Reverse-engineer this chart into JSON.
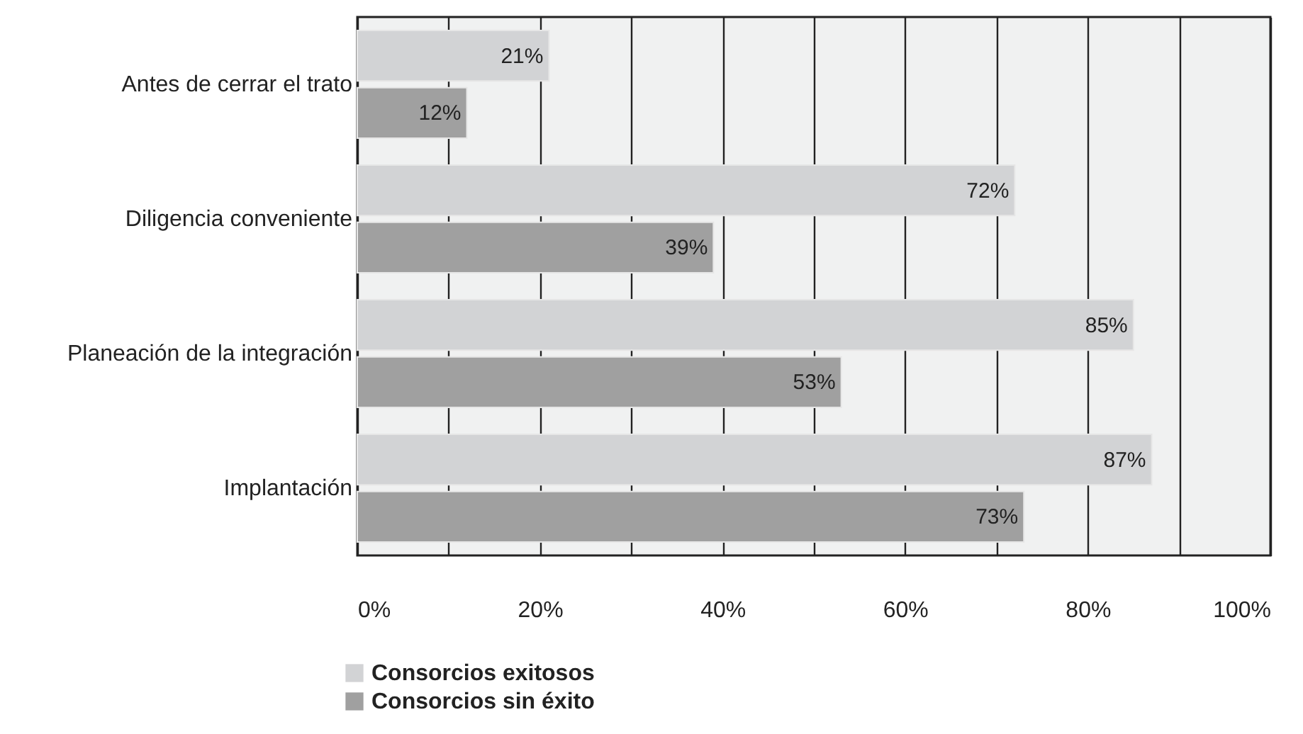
{
  "chart_data": {
    "type": "bar",
    "orientation": "horizontal",
    "categories": [
      "Antes de cerrar el trato",
      "Diligencia conveniente",
      "Planeación de la integración",
      "Implantación"
    ],
    "series": [
      {
        "name": "Consorcios exitosos",
        "color": "#d2d3d5",
        "values": [
          21,
          72,
          85,
          87
        ],
        "value_labels": [
          "21%",
          "72%",
          "85%",
          "87%"
        ]
      },
      {
        "name": "Consorcios sin éxito",
        "color": "#a0a0a0",
        "values": [
          12,
          39,
          53,
          73
        ],
        "value_labels": [
          "12%",
          "39%",
          "53%",
          "73%"
        ]
      }
    ],
    "xlim": [
      0,
      100
    ],
    "xticks": [
      {
        "value": 0,
        "label": "0%"
      },
      {
        "value": 10,
        "label": null
      },
      {
        "value": 20,
        "label": "20%"
      },
      {
        "value": 30,
        "label": null
      },
      {
        "value": 40,
        "label": "40%"
      },
      {
        "value": 50,
        "label": null
      },
      {
        "value": 60,
        "label": "60%"
      },
      {
        "value": 70,
        "label": null
      },
      {
        "value": 80,
        "label": "80%"
      },
      {
        "value": 90,
        "label": null
      },
      {
        "value": 100,
        "label": "100%"
      }
    ],
    "grid": "x",
    "legend": "bottom"
  }
}
